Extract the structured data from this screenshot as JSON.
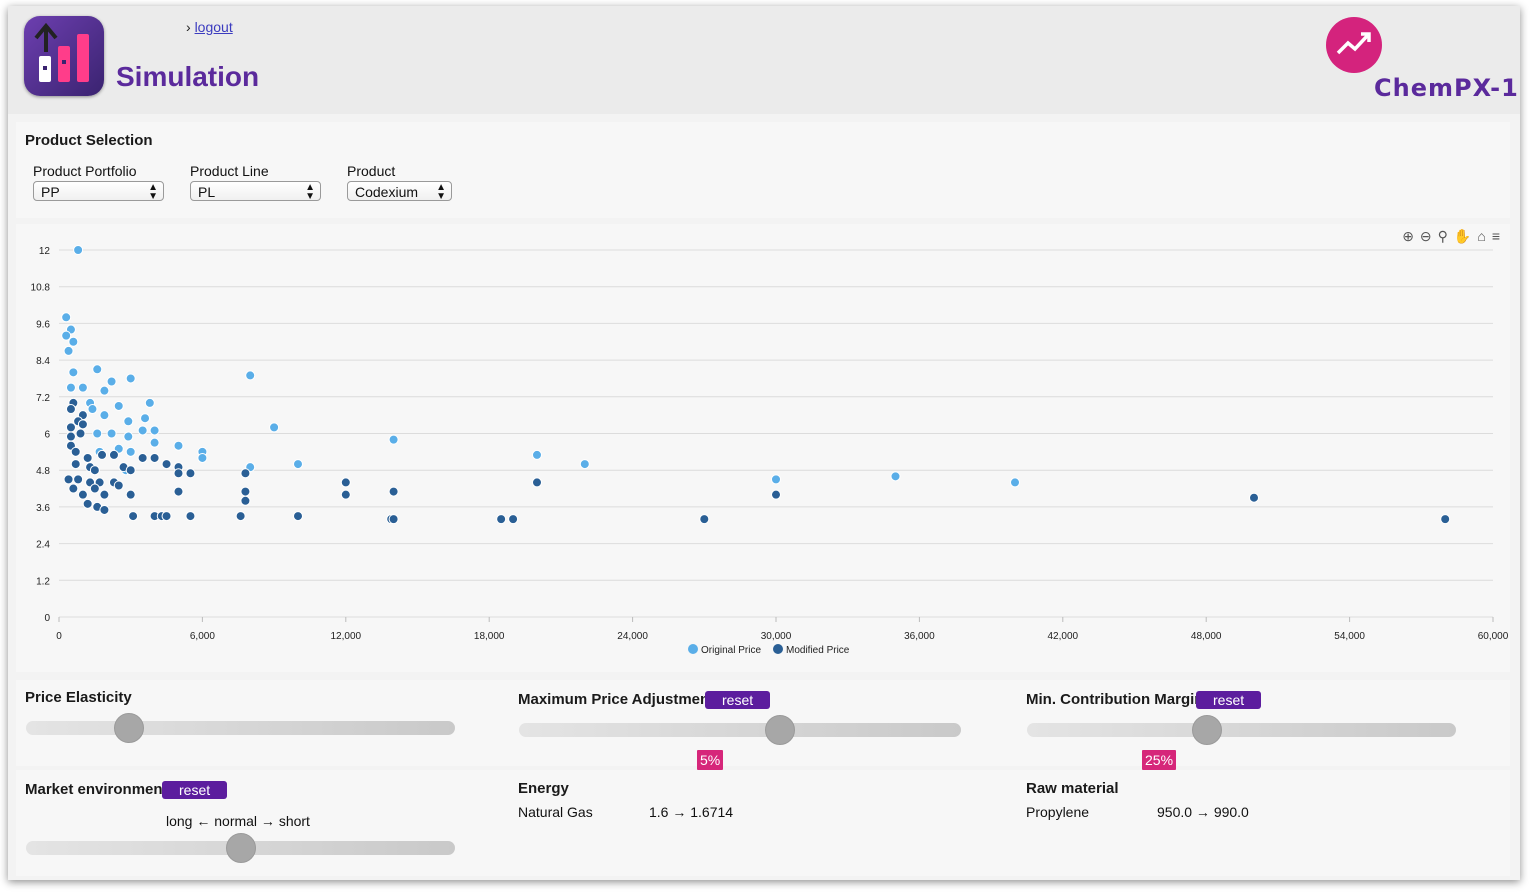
{
  "header": {
    "logout_prefix": "›",
    "logout_label": "logout",
    "title": "Simulation",
    "brand": "ChemPX-1",
    "app_icon": "bar-chart-up-icon",
    "brand_icon": "trend-up-icon"
  },
  "colors": {
    "accent": "#5b2a9c",
    "button": "#5c1d9e",
    "badge": "#d6267a",
    "original": "#5aaee8",
    "modified": "#2a5f95"
  },
  "product_selection": {
    "title": "Product Selection",
    "portfolio": {
      "label": "Product Portfolio",
      "value": "PP"
    },
    "line": {
      "label": "Product Line",
      "value": "PL"
    },
    "product": {
      "label": "Product",
      "value": "Codexium"
    }
  },
  "chart_data": {
    "type": "scatter",
    "title": "",
    "xlabel": "",
    "ylabel": "",
    "xlim": [
      0,
      60000
    ],
    "ylim": [
      0,
      12
    ],
    "x_ticks": [
      "0",
      "6,000",
      "12,000",
      "18,000",
      "24,000",
      "30,000",
      "36,000",
      "42,000",
      "48,000",
      "54,000",
      "60,000"
    ],
    "y_ticks": [
      "0",
      "1.2",
      "2.4",
      "3.6",
      "4.8",
      "6",
      "7.2",
      "8.4",
      "9.6",
      "10.8",
      "12"
    ],
    "grid": true,
    "legend_position": "bottom",
    "series": [
      {
        "name": "Original Price",
        "points": [
          [
            800,
            12
          ],
          [
            300,
            9.8
          ],
          [
            500,
            9.4
          ],
          [
            300,
            9.2
          ],
          [
            600,
            9
          ],
          [
            400,
            8.7
          ],
          [
            1600,
            8.1
          ],
          [
            600,
            8
          ],
          [
            2200,
            7.7
          ],
          [
            3000,
            7.8
          ],
          [
            8000,
            7.9
          ],
          [
            1000,
            7.5
          ],
          [
            1900,
            7.4
          ],
          [
            500,
            7.5
          ],
          [
            3800,
            7
          ],
          [
            1300,
            7
          ],
          [
            2500,
            6.9
          ],
          [
            1400,
            6.8
          ],
          [
            1900,
            6.6
          ],
          [
            3600,
            6.5
          ],
          [
            2900,
            6.4
          ],
          [
            3500,
            6.1
          ],
          [
            9000,
            6.2
          ],
          [
            4000,
            6.1
          ],
          [
            1600,
            6
          ],
          [
            2200,
            6
          ],
          [
            2900,
            5.9
          ],
          [
            4000,
            5.7
          ],
          [
            14000,
            5.8
          ],
          [
            5000,
            5.6
          ],
          [
            6000,
            5.4
          ],
          [
            20000,
            5.3
          ],
          [
            6000,
            5.2
          ],
          [
            1700,
            5.4
          ],
          [
            2500,
            5.5
          ],
          [
            3000,
            5.4
          ],
          [
            22000,
            5
          ],
          [
            8000,
            4.9
          ],
          [
            10000,
            5
          ],
          [
            30000,
            4.5
          ],
          [
            35000,
            4.6
          ],
          [
            40000,
            4.4
          ],
          [
            2800,
            4.8
          ]
        ]
      },
      {
        "name": "Modified Price",
        "points": [
          [
            600,
            7
          ],
          [
            500,
            6.8
          ],
          [
            1000,
            6.6
          ],
          [
            800,
            6.4
          ],
          [
            1000,
            6.3
          ],
          [
            500,
            6.2
          ],
          [
            900,
            6
          ],
          [
            500,
            5.9
          ],
          [
            500,
            5.6
          ],
          [
            700,
            5.4
          ],
          [
            1200,
            5.2
          ],
          [
            1800,
            5.3
          ],
          [
            2300,
            5.3
          ],
          [
            3500,
            5.2
          ],
          [
            4000,
            5.2
          ],
          [
            4500,
            5
          ],
          [
            5000,
            4.9
          ],
          [
            700,
            5
          ],
          [
            1300,
            4.9
          ],
          [
            2700,
            4.9
          ],
          [
            1500,
            4.8
          ],
          [
            3000,
            4.8
          ],
          [
            5000,
            4.7
          ],
          [
            5500,
            4.7
          ],
          [
            7800,
            4.7
          ],
          [
            400,
            4.5
          ],
          [
            800,
            4.5
          ],
          [
            1300,
            4.4
          ],
          [
            1700,
            4.4
          ],
          [
            2300,
            4.4
          ],
          [
            2500,
            4.3
          ],
          [
            600,
            4.2
          ],
          [
            1500,
            4.2
          ],
          [
            12000,
            4.4
          ],
          [
            20000,
            4.4
          ],
          [
            1000,
            4
          ],
          [
            1900,
            4
          ],
          [
            3000,
            4
          ],
          [
            5000,
            4.1
          ],
          [
            7800,
            4.1
          ],
          [
            12000,
            4
          ],
          [
            14000,
            4.1
          ],
          [
            30000,
            4
          ],
          [
            50000,
            3.9
          ],
          [
            7800,
            3.8
          ],
          [
            1200,
            3.7
          ],
          [
            1600,
            3.6
          ],
          [
            1900,
            3.5
          ],
          [
            3100,
            3.3
          ],
          [
            4000,
            3.3
          ],
          [
            4300,
            3.3
          ],
          [
            4500,
            3.3
          ],
          [
            5500,
            3.3
          ],
          [
            7600,
            3.3
          ],
          [
            10000,
            3.3
          ],
          [
            13900,
            3.2
          ],
          [
            14000,
            3.2
          ],
          [
            18500,
            3.2
          ],
          [
            19000,
            3.2
          ],
          [
            27000,
            3.2
          ],
          [
            58000,
            3.2
          ]
        ]
      }
    ]
  },
  "chart_tools": [
    "zoom-in-icon",
    "zoom-out-icon",
    "magnify-icon",
    "pan-hand-icon",
    "home-icon",
    "menu-icon"
  ],
  "price_elasticity": {
    "title": "Price Elasticity",
    "value_fraction": 0.24
  },
  "max_price_adjustment": {
    "title": "Maximum Price Adjustment",
    "reset": "reset",
    "value": "5%",
    "value_fraction": 0.59
  },
  "min_contribution_margin": {
    "title": "Min. Contribution Margin",
    "reset": "reset",
    "value": "25%",
    "value_fraction": 0.42
  },
  "market_environment": {
    "title": "Market environment",
    "reset": "reset",
    "scale": "long ← normal → short",
    "value_fraction": 0.5
  },
  "energy": {
    "title": "Energy",
    "item": "Natural Gas",
    "value": "1.6 → 1.6714"
  },
  "raw_material": {
    "title": "Raw material",
    "item": "Propylene",
    "value": "950.0 → 990.0"
  }
}
